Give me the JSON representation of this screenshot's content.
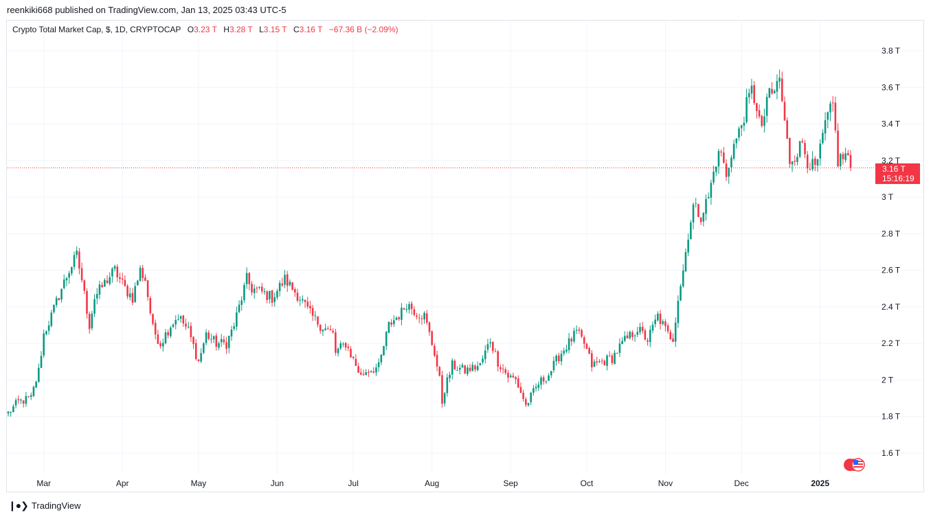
{
  "header": {
    "text": "reenkiki668 published on TradingView.com, Jan 13, 2025 03:43 UTC-5"
  },
  "legend": {
    "symbol": "Crypto Total Market Cap, $, 1D, CRYPTOCAP",
    "o_label": "O",
    "o_value": "3.23 T",
    "h_label": "H",
    "h_value": "3.28 T",
    "l_label": "L",
    "l_value": "3.15 T",
    "c_label": "C",
    "c_value": "3.16 T",
    "change": "−67.36 B (−2.09%)"
  },
  "price_tag": {
    "price": "3.16 T",
    "countdown": "15:16:19"
  },
  "footer": {
    "brand": "TradingView",
    "logo_icon": "tradingview-logo-icon"
  },
  "colors": {
    "up": "#089981",
    "down": "#f23645",
    "grid": "#f0f3fa",
    "text": "#131722"
  },
  "chart_data": {
    "type": "candlestick",
    "title": "Crypto Total Market Cap, $, 1D, CRYPTOCAP",
    "interval": "1D",
    "y_unit": "T",
    "ylim": [
      1.5,
      3.9
    ],
    "y_ticks": [
      1.6,
      1.8,
      2.0,
      2.2,
      2.4,
      2.6,
      2.8,
      3.0,
      3.2,
      3.4,
      3.6,
      3.8
    ],
    "y_tick_labels": [
      "1.6 T",
      "1.8 T",
      "2 T",
      "2.2 T",
      "2.4 T",
      "2.6 T",
      "2.8 T",
      "3 T",
      "3.2 T",
      "3.4 T",
      "3.6 T",
      "3.8 T"
    ],
    "x_range": [
      "2024-02-16",
      "2025-01-13"
    ],
    "x_ticks": [
      {
        "date": "2024-03-01",
        "label": "Mar"
      },
      {
        "date": "2024-04-01",
        "label": "Apr"
      },
      {
        "date": "2024-05-01",
        "label": "May"
      },
      {
        "date": "2024-06-01",
        "label": "Jun"
      },
      {
        "date": "2024-07-01",
        "label": "Jul"
      },
      {
        "date": "2024-08-01",
        "label": "Aug"
      },
      {
        "date": "2024-09-01",
        "label": "Sep"
      },
      {
        "date": "2024-10-01",
        "label": "Oct"
      },
      {
        "date": "2024-11-01",
        "label": "Nov"
      },
      {
        "date": "2024-12-01",
        "label": "Dec"
      },
      {
        "date": "2025-01-01",
        "label": "2025"
      }
    ],
    "last_price": 3.16,
    "grid": true,
    "close_path": [
      [
        "2024-02-16",
        1.82
      ],
      [
        "2024-02-20",
        1.88
      ],
      [
        "2024-02-25",
        1.9
      ],
      [
        "2024-02-28",
        2.05
      ],
      [
        "2024-03-01",
        2.25
      ],
      [
        "2024-03-04",
        2.35
      ],
      [
        "2024-03-08",
        2.5
      ],
      [
        "2024-03-11",
        2.6
      ],
      [
        "2024-03-14",
        2.68
      ],
      [
        "2024-03-16",
        2.55
      ],
      [
        "2024-03-19",
        2.3
      ],
      [
        "2024-03-21",
        2.45
      ],
      [
        "2024-03-26",
        2.55
      ],
      [
        "2024-03-29",
        2.6
      ],
      [
        "2024-04-02",
        2.5
      ],
      [
        "2024-04-05",
        2.45
      ],
      [
        "2024-04-08",
        2.6
      ],
      [
        "2024-04-10",
        2.55
      ],
      [
        "2024-04-13",
        2.28
      ],
      [
        "2024-04-16",
        2.2
      ],
      [
        "2024-04-20",
        2.3
      ],
      [
        "2024-04-23",
        2.35
      ],
      [
        "2024-04-27",
        2.27
      ],
      [
        "2024-05-01",
        2.1
      ],
      [
        "2024-05-04",
        2.25
      ],
      [
        "2024-05-08",
        2.2
      ],
      [
        "2024-05-12",
        2.2
      ],
      [
        "2024-05-15",
        2.3
      ],
      [
        "2024-05-20",
        2.55
      ],
      [
        "2024-05-22",
        2.5
      ],
      [
        "2024-05-26",
        2.48
      ],
      [
        "2024-05-30",
        2.45
      ],
      [
        "2024-06-04",
        2.55
      ],
      [
        "2024-06-07",
        2.5
      ],
      [
        "2024-06-10",
        2.45
      ],
      [
        "2024-06-14",
        2.36
      ],
      [
        "2024-06-18",
        2.3
      ],
      [
        "2024-06-23",
        2.25
      ],
      [
        "2024-06-24",
        2.15
      ],
      [
        "2024-06-28",
        2.2
      ],
      [
        "2024-07-04",
        2.02
      ],
      [
        "2024-07-06",
        2.05
      ],
      [
        "2024-07-11",
        2.07
      ],
      [
        "2024-07-15",
        2.3
      ],
      [
        "2024-07-20",
        2.37
      ],
      [
        "2024-07-22",
        2.42
      ],
      [
        "2024-07-26",
        2.37
      ],
      [
        "2024-07-29",
        2.35
      ],
      [
        "2024-08-02",
        2.15
      ],
      [
        "2024-08-04",
        2.0
      ],
      [
        "2024-08-05",
        1.88
      ],
      [
        "2024-08-06",
        1.95
      ],
      [
        "2024-08-09",
        2.08
      ],
      [
        "2024-08-14",
        2.05
      ],
      [
        "2024-08-20",
        2.08
      ],
      [
        "2024-08-24",
        2.22
      ],
      [
        "2024-08-27",
        2.1
      ],
      [
        "2024-08-31",
        2.02
      ],
      [
        "2024-09-03",
        2.0
      ],
      [
        "2024-09-06",
        1.9
      ],
      [
        "2024-09-07",
        1.86
      ],
      [
        "2024-09-12",
        1.98
      ],
      [
        "2024-09-16",
        2.03
      ],
      [
        "2024-09-20",
        2.13
      ],
      [
        "2024-09-27",
        2.26
      ],
      [
        "2024-09-30",
        2.2
      ],
      [
        "2024-10-03",
        2.08
      ],
      [
        "2024-10-07",
        2.1
      ],
      [
        "2024-10-11",
        2.12
      ],
      [
        "2024-10-15",
        2.2
      ],
      [
        "2024-10-21",
        2.28
      ],
      [
        "2024-10-25",
        2.22
      ],
      [
        "2024-10-29",
        2.35
      ],
      [
        "2024-11-02",
        2.25
      ],
      [
        "2024-11-04",
        2.23
      ],
      [
        "2024-11-06",
        2.45
      ],
      [
        "2024-11-08",
        2.6
      ],
      [
        "2024-11-10",
        2.8
      ],
      [
        "2024-11-12",
        2.95
      ],
      [
        "2024-11-15",
        2.9
      ],
      [
        "2024-11-18",
        3.0
      ],
      [
        "2024-11-21",
        3.2
      ],
      [
        "2024-11-23",
        3.25
      ],
      [
        "2024-11-25",
        3.1
      ],
      [
        "2024-11-27",
        3.25
      ],
      [
        "2024-11-30",
        3.35
      ],
      [
        "2024-12-03",
        3.5
      ],
      [
        "2024-12-05",
        3.58
      ],
      [
        "2024-12-07",
        3.5
      ],
      [
        "2024-12-09",
        3.35
      ],
      [
        "2024-12-11",
        3.55
      ],
      [
        "2024-12-13",
        3.55
      ],
      [
        "2024-12-16",
        3.65
      ],
      [
        "2024-12-18",
        3.4
      ],
      [
        "2024-12-20",
        3.2
      ],
      [
        "2024-12-23",
        3.25
      ],
      [
        "2024-12-25",
        3.3
      ],
      [
        "2024-12-27",
        3.2
      ],
      [
        "2024-12-30",
        3.15
      ],
      [
        "2025-01-01",
        3.25
      ],
      [
        "2025-01-03",
        3.4
      ],
      [
        "2025-01-06",
        3.5
      ],
      [
        "2025-01-08",
        3.2
      ],
      [
        "2025-01-10",
        3.22
      ],
      [
        "2025-01-12",
        3.23
      ],
      [
        "2025-01-13",
        3.16
      ]
    ]
  }
}
